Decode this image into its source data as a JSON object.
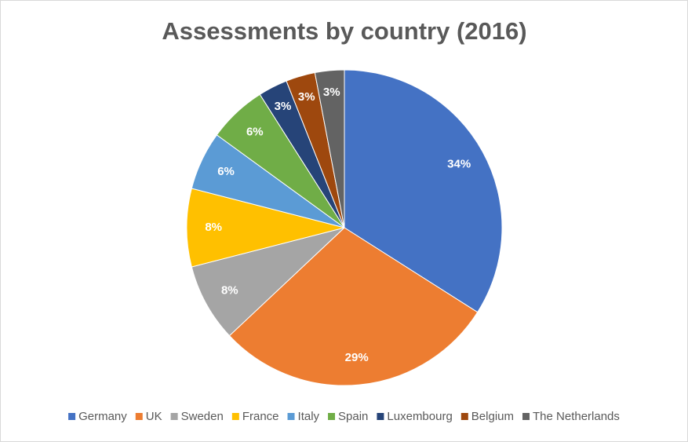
{
  "chart_data": {
    "type": "pie",
    "title": "Assessments by country (2016)",
    "categories": [
      "Germany",
      "UK",
      "Sweden",
      "France",
      "Italy",
      "Spain",
      "Luxembourg",
      "Belgium",
      "The Netherlands"
    ],
    "values": [
      34,
      29,
      8,
      8,
      6,
      6,
      3,
      3,
      3
    ],
    "value_labels": [
      "34%",
      "29%",
      "8%",
      "8%",
      "6%",
      "6%",
      "3%",
      "3%",
      "3%"
    ],
    "colors": [
      "#4472c4",
      "#ed7d31",
      "#a5a5a5",
      "#ffc000",
      "#5b9bd5",
      "#70ad47",
      "#264478",
      "#9e480e",
      "#636363"
    ],
    "legend": "bottom"
  }
}
